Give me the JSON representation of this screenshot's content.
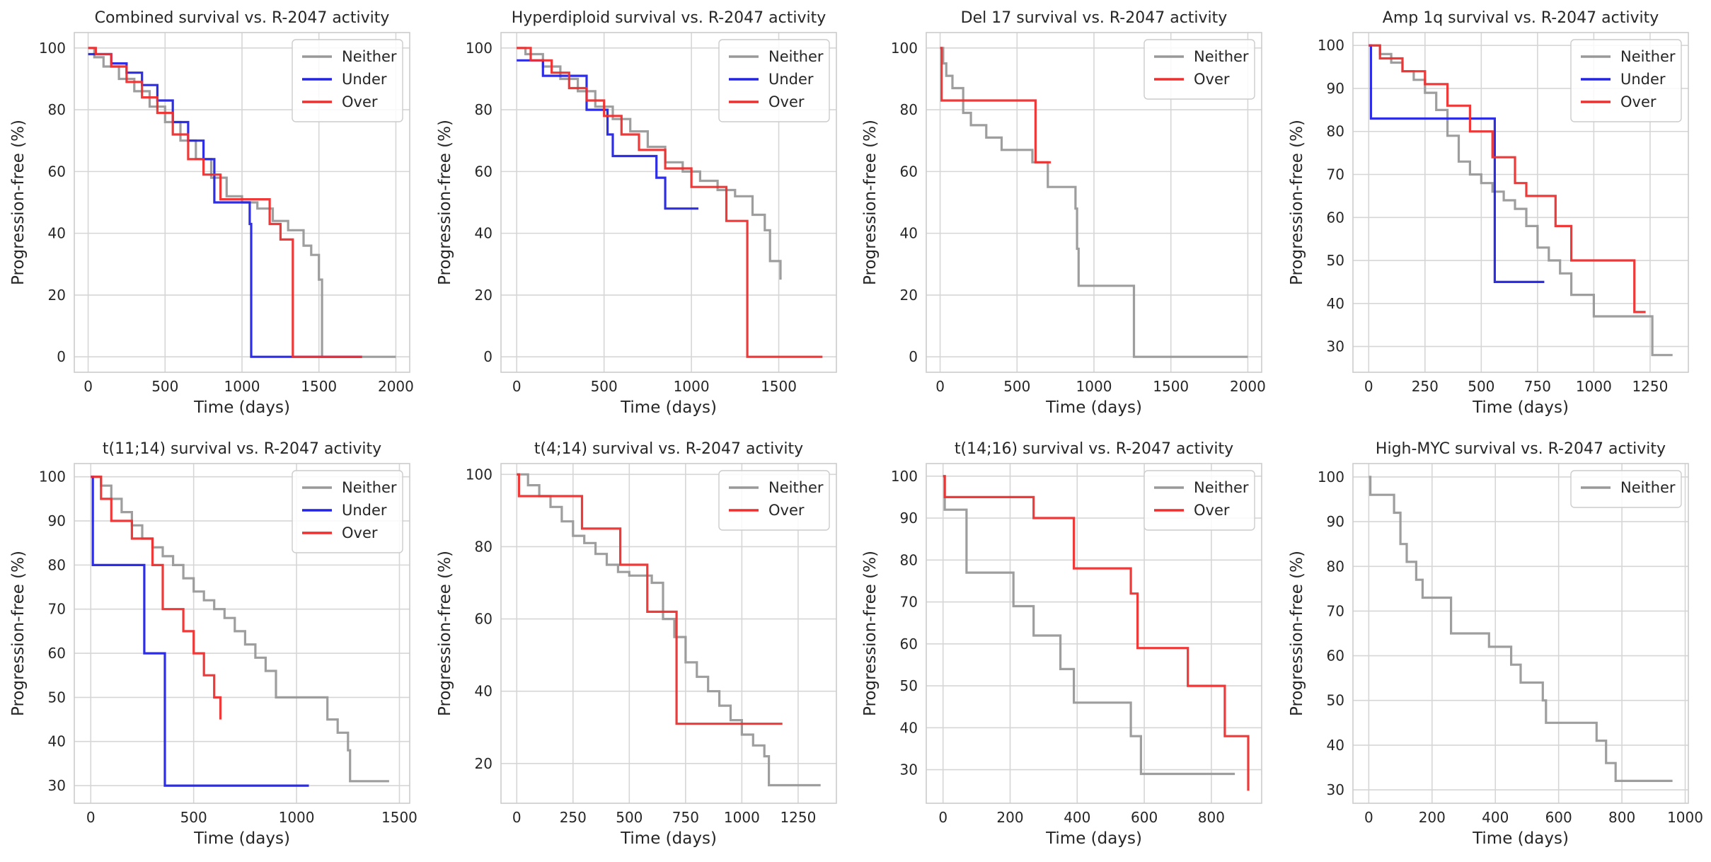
{
  "colors": {
    "Neither": "#999999",
    "Under": "#2323e6",
    "Over": "#ef2e2e",
    "grid": "#d6d6d6",
    "frame": "#cccccc"
  },
  "chart_data": [
    {
      "type": "line",
      "title": "Combined survival vs. R-2047 activity",
      "xlabel": "Time (days)",
      "ylabel": "Progression-free (%)",
      "xlim": [
        -90,
        2090
      ],
      "ylim": [
        -5,
        105
      ],
      "xticks": [
        0,
        500,
        1000,
        1500,
        2000
      ],
      "yticks": [
        0,
        20,
        40,
        60,
        80,
        100
      ],
      "grid": true,
      "legend": "top-right",
      "series": [
        {
          "name": "Neither",
          "x": [
            0,
            40,
            100,
            200,
            300,
            400,
            500,
            600,
            700,
            800,
            900,
            1000,
            1100,
            1200,
            1300,
            1400,
            1450,
            1500,
            1500,
            1520,
            1520,
            2000
          ],
          "y": [
            100,
            97,
            94,
            90,
            86,
            81,
            76,
            70,
            64,
            58,
            52,
            50,
            48,
            44,
            41,
            36,
            33,
            29,
            25,
            25,
            0,
            0
          ]
        },
        {
          "name": "Under",
          "x": [
            0,
            60,
            150,
            250,
            350,
            450,
            550,
            650,
            750,
            820,
            1000,
            1050,
            1060,
            1780
          ],
          "y": [
            98,
            98,
            95,
            92,
            88,
            83,
            76,
            70,
            64,
            50,
            50,
            43,
            0,
            0
          ]
        },
        {
          "name": "Over",
          "x": [
            0,
            50,
            150,
            250,
            350,
            450,
            550,
            650,
            750,
            860,
            1180,
            1250,
            1320,
            1330,
            1780
          ],
          "y": [
            100,
            98,
            94,
            89,
            84,
            79,
            72,
            64,
            59,
            51,
            43,
            38,
            38,
            0,
            0
          ]
        }
      ]
    },
    {
      "type": "line",
      "title": "Hyperdiploid survival vs. R-2047 activity",
      "xlabel": "Time (days)",
      "ylabel": "Progression-free (%)",
      "xlim": [
        -90,
        1830
      ],
      "ylim": [
        -5,
        105
      ],
      "xticks": [
        0,
        500,
        1000,
        1500
      ],
      "yticks": [
        0,
        20,
        40,
        60,
        80,
        100
      ],
      "grid": true,
      "legend": "top-right",
      "series": [
        {
          "name": "Neither",
          "x": [
            0,
            50,
            150,
            250,
            350,
            450,
            550,
            650,
            750,
            850,
            950,
            1050,
            1150,
            1250,
            1350,
            1420,
            1450,
            1510
          ],
          "y": [
            100,
            98,
            94,
            90,
            86,
            81,
            77,
            73,
            68,
            63,
            60,
            57,
            54,
            52,
            46,
            41,
            31,
            25
          ]
        },
        {
          "name": "Under",
          "x": [
            0,
            70,
            150,
            250,
            400,
            520,
            550,
            800,
            850,
            1040
          ],
          "y": [
            96,
            96,
            91,
            91,
            80,
            72,
            65,
            58,
            48,
            48
          ]
        },
        {
          "name": "Over",
          "x": [
            0,
            80,
            200,
            300,
            400,
            500,
            600,
            700,
            850,
            1000,
            1100,
            1200,
            1300,
            1320,
            1750
          ],
          "y": [
            100,
            96,
            92,
            87,
            83,
            78,
            72,
            67,
            61,
            55,
            55,
            44,
            44,
            0,
            0
          ]
        }
      ]
    },
    {
      "type": "line",
      "title": "Del 17 survival vs. R-2047 activity",
      "xlabel": "Time (days)",
      "ylabel": "Progression-free (%)",
      "xlim": [
        -90,
        2090
      ],
      "ylim": [
        -5,
        105
      ],
      "xticks": [
        0,
        500,
        1000,
        1500,
        2000
      ],
      "yticks": [
        0,
        20,
        40,
        60,
        80,
        100
      ],
      "grid": true,
      "legend": "top-right",
      "series": [
        {
          "name": "Neither",
          "x": [
            0,
            20,
            40,
            80,
            150,
            200,
            300,
            400,
            500,
            600,
            700,
            800,
            880,
            890,
            900,
            1000,
            1250,
            1260,
            2000
          ],
          "y": [
            100,
            95,
            91,
            87,
            79,
            75,
            71,
            67,
            67,
            63,
            55,
            55,
            48,
            35,
            23,
            23,
            23,
            0,
            0
          ]
        },
        {
          "name": "Over",
          "x": [
            0,
            10,
            590,
            620,
            720
          ],
          "y": [
            100,
            83,
            83,
            63,
            63
          ]
        }
      ]
    },
    {
      "type": "line",
      "title": "Amp 1q survival vs. R-2047 activity",
      "xlabel": "Time (days)",
      "ylabel": "Progression-free (%)",
      "xlim": [
        -70,
        1420
      ],
      "ylim": [
        24,
        103
      ],
      "xticks": [
        0,
        250,
        500,
        750,
        1000,
        1250
      ],
      "yticks": [
        30,
        40,
        50,
        60,
        70,
        80,
        90,
        100
      ],
      "grid": true,
      "legend": "top-right",
      "series": [
        {
          "name": "Neither",
          "x": [
            0,
            50,
            100,
            150,
            200,
            250,
            300,
            350,
            400,
            450,
            500,
            550,
            600,
            650,
            700,
            750,
            800,
            850,
            900,
            1000,
            1100,
            1250,
            1260,
            1350
          ],
          "y": [
            100,
            98,
            96,
            94,
            92,
            89,
            85,
            79,
            73,
            70,
            68,
            66,
            64,
            62,
            58,
            53,
            50,
            47,
            42,
            37,
            37,
            37,
            28,
            28
          ]
        },
        {
          "name": "Under",
          "x": [
            0,
            10,
            540,
            560,
            780
          ],
          "y": [
            100,
            83,
            83,
            45,
            45
          ]
        },
        {
          "name": "Over",
          "x": [
            0,
            50,
            150,
            250,
            350,
            450,
            550,
            650,
            700,
            830,
            900,
            1000,
            1180,
            1230
          ],
          "y": [
            100,
            97,
            94,
            91,
            86,
            80,
            74,
            68,
            65,
            58,
            50,
            50,
            38,
            38
          ]
        }
      ]
    },
    {
      "type": "line",
      "title": "t(11;14) survival vs. R-2047 activity",
      "xlabel": "Time (days)",
      "ylabel": "Progression-free (%)",
      "xlim": [
        -80,
        1550
      ],
      "ylim": [
        26,
        103
      ],
      "xticks": [
        0,
        500,
        1000,
        1500
      ],
      "yticks": [
        30,
        40,
        50,
        60,
        70,
        80,
        90,
        100
      ],
      "grid": true,
      "legend": "top-right",
      "series": [
        {
          "name": "Neither",
          "x": [
            0,
            50,
            100,
            150,
            200,
            250,
            300,
            350,
            400,
            450,
            500,
            550,
            600,
            650,
            700,
            750,
            800,
            850,
            900,
            1000,
            1100,
            1150,
            1200,
            1250,
            1260,
            1450
          ],
          "y": [
            100,
            98,
            95,
            92,
            89,
            86,
            84,
            82,
            80,
            77,
            74,
            72,
            70,
            68,
            65,
            62,
            59,
            56,
            50,
            50,
            50,
            45,
            42,
            38,
            31,
            31
          ]
        },
        {
          "name": "Under",
          "x": [
            0,
            10,
            250,
            260,
            350,
            360,
            1060
          ],
          "y": [
            100,
            80,
            80,
            60,
            60,
            30,
            30
          ]
        },
        {
          "name": "Over",
          "x": [
            0,
            50,
            100,
            200,
            300,
            350,
            400,
            450,
            500,
            550,
            600,
            630
          ],
          "y": [
            100,
            95,
            90,
            86,
            80,
            70,
            70,
            65,
            60,
            55,
            50,
            45
          ]
        }
      ]
    },
    {
      "type": "line",
      "title": "t(4;14) survival vs. R-2047 activity",
      "xlabel": "Time (days)",
      "ylabel": "Progression-free (%)",
      "xlim": [
        -70,
        1420
      ],
      "ylim": [
        9,
        103
      ],
      "xticks": [
        0,
        250,
        500,
        750,
        1000,
        1250
      ],
      "yticks": [
        20,
        40,
        60,
        80,
        100
      ],
      "grid": true,
      "legend": "top-right",
      "series": [
        {
          "name": "Neither",
          "x": [
            0,
            50,
            100,
            150,
            200,
            250,
            300,
            350,
            400,
            450,
            500,
            550,
            600,
            650,
            700,
            750,
            800,
            850,
            900,
            950,
            1000,
            1050,
            1100,
            1120,
            1350
          ],
          "y": [
            100,
            97,
            94,
            91,
            87,
            83,
            81,
            78,
            75,
            73,
            72,
            72,
            70,
            60,
            55,
            48,
            44,
            40,
            36,
            32,
            28,
            25,
            22,
            14,
            14
          ]
        },
        {
          "name": "Over",
          "x": [
            0,
            10,
            280,
            290,
            450,
            460,
            570,
            580,
            700,
            710,
            1180
          ],
          "y": [
            100,
            94,
            94,
            85,
            85,
            75,
            75,
            62,
            62,
            31,
            31
          ]
        }
      ]
    },
    {
      "type": "line",
      "title": "t(14;16) survival vs. R-2047 activity",
      "xlabel": "Time (days)",
      "ylabel": "Progression-free (%)",
      "xlim": [
        -50,
        950
      ],
      "ylim": [
        22,
        103
      ],
      "xticks": [
        0,
        200,
        400,
        600,
        800
      ],
      "yticks": [
        30,
        40,
        50,
        60,
        70,
        80,
        90,
        100
      ],
      "grid": true,
      "legend": "top-right",
      "series": [
        {
          "name": "Neither",
          "x": [
            0,
            5,
            60,
            70,
            200,
            210,
            260,
            270,
            340,
            350,
            380,
            390,
            550,
            560,
            580,
            590,
            870
          ],
          "y": [
            100,
            92,
            92,
            77,
            77,
            69,
            69,
            62,
            62,
            54,
            54,
            46,
            46,
            38,
            38,
            29,
            29
          ]
        },
        {
          "name": "Over",
          "x": [
            0,
            5,
            260,
            270,
            380,
            390,
            550,
            560,
            570,
            580,
            720,
            730,
            830,
            840,
            900,
            910
          ],
          "y": [
            100,
            95,
            95,
            90,
            90,
            78,
            78,
            72,
            72,
            59,
            59,
            50,
            50,
            38,
            38,
            25
          ]
        }
      ]
    },
    {
      "type": "line",
      "title": "High-MYC survival vs. R-2047 activity",
      "xlabel": "Time (days)",
      "ylabel": "Progression-free (%)",
      "xlim": [
        -50,
        1010
      ],
      "ylim": [
        27,
        103
      ],
      "xticks": [
        0,
        200,
        400,
        600,
        800,
        1000
      ],
      "yticks": [
        30,
        40,
        50,
        60,
        70,
        80,
        90,
        100
      ],
      "grid": true,
      "legend": "top-right",
      "series": [
        {
          "name": "Neither",
          "x": [
            0,
            5,
            60,
            80,
            100,
            120,
            150,
            170,
            250,
            260,
            370,
            380,
            450,
            480,
            550,
            560,
            700,
            720,
            750,
            780,
            960
          ],
          "y": [
            100,
            96,
            96,
            92,
            85,
            81,
            77,
            73,
            73,
            65,
            65,
            62,
            58,
            54,
            50,
            45,
            45,
            41,
            36,
            32,
            32
          ]
        }
      ]
    }
  ]
}
